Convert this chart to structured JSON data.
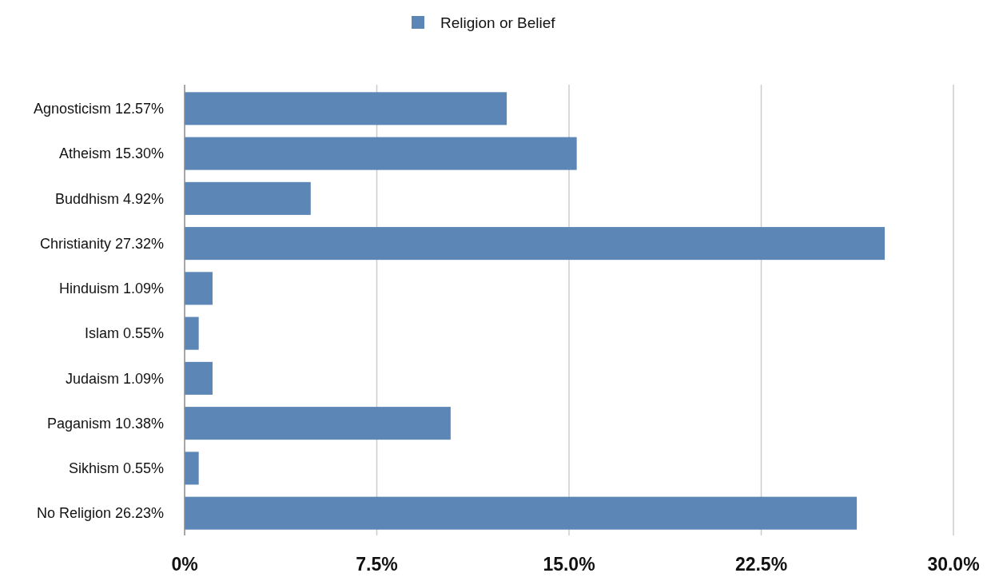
{
  "chart_data": {
    "type": "bar",
    "orientation": "horizontal",
    "categories": [
      "Agnosticism 12.57%",
      "Atheism 15.30%",
      "Buddhism 4.92%",
      "Christianity 27.32%",
      "Hinduism 1.09%",
      "Islam 0.55%",
      "Judaism 1.09%",
      "Paganism 10.38%",
      "Sikhism 0.55%",
      "No Religion 26.23%"
    ],
    "series": [
      {
        "name": "Religion or Belief",
        "color": "#5b86b5",
        "values": [
          12.57,
          15.3,
          4.92,
          27.32,
          1.09,
          0.55,
          1.09,
          10.38,
          0.55,
          26.23
        ]
      }
    ],
    "xlim": [
      0,
      30
    ],
    "xticks": [
      {
        "value": 0,
        "label": "0%"
      },
      {
        "value": 7.5,
        "label": "7.5%"
      },
      {
        "value": 15,
        "label": "15.0%"
      },
      {
        "value": 22.5,
        "label": "22.5%"
      },
      {
        "value": 30,
        "label": "30.0%"
      }
    ],
    "grid": "x",
    "legend": "top"
  }
}
